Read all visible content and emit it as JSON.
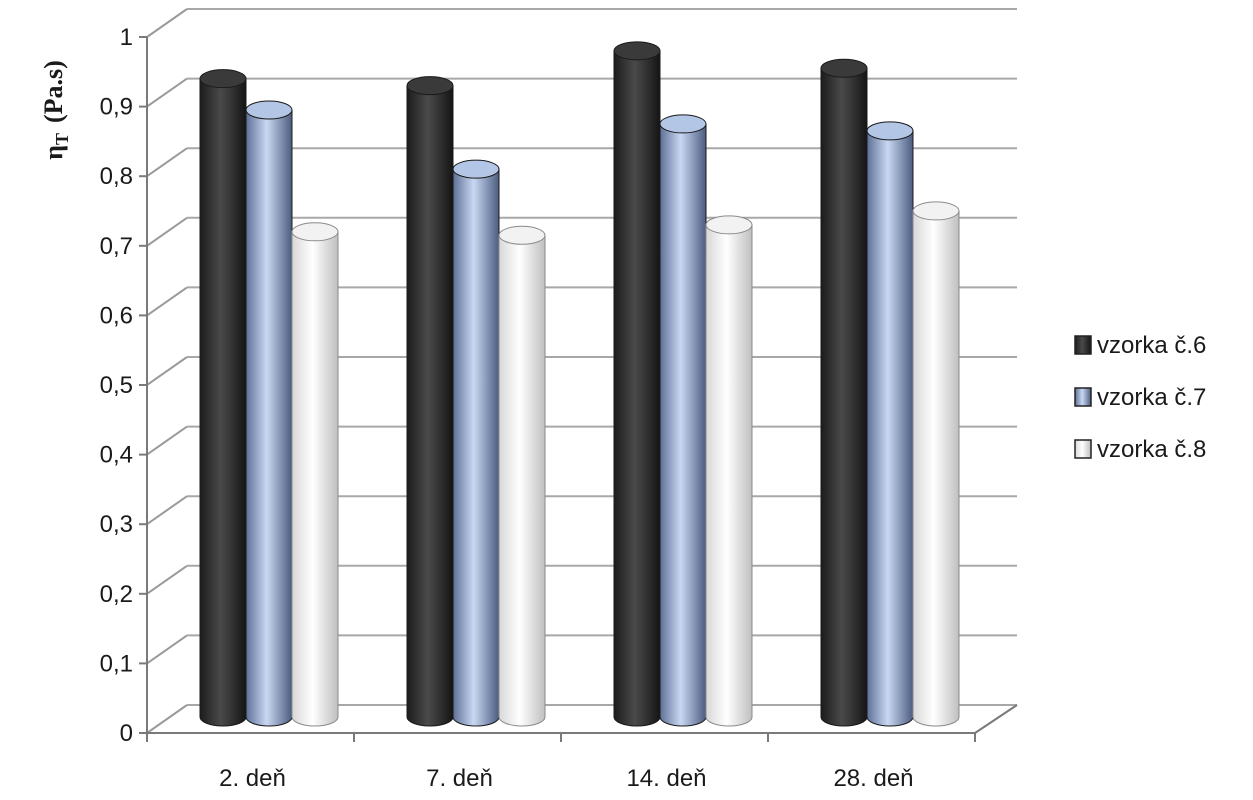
{
  "chart_data": {
    "type": "bar",
    "style": "3d-cylinder",
    "title": "",
    "xlabel": "",
    "ylabel": "ηT (Pa.s)",
    "ylabel_symbol": "η",
    "ylabel_subscript": "T",
    "ylabel_unit": "(Pa.s)",
    "ylim": [
      0,
      1
    ],
    "yticks": [
      "0",
      "0,1",
      "0,2",
      "0,3",
      "0,4",
      "0,5",
      "0,6",
      "0,7",
      "0,8",
      "0,9",
      "1"
    ],
    "grid": true,
    "legend_position": "right",
    "categories": [
      "2. deň",
      "7. deň",
      "14. deň",
      "28. deň"
    ],
    "series": [
      {
        "name": "vzorka č.6",
        "color": "#2e2e2e",
        "values": [
          0.92,
          0.91,
          0.96,
          0.935
        ]
      },
      {
        "name": "vzorka č.7",
        "color": "#9fb6dc",
        "values": [
          0.875,
          0.79,
          0.855,
          0.845
        ]
      },
      {
        "name": "vzorka č.8",
        "color": "#ffffff",
        "values": [
          0.7,
          0.695,
          0.71,
          0.73
        ]
      }
    ]
  }
}
